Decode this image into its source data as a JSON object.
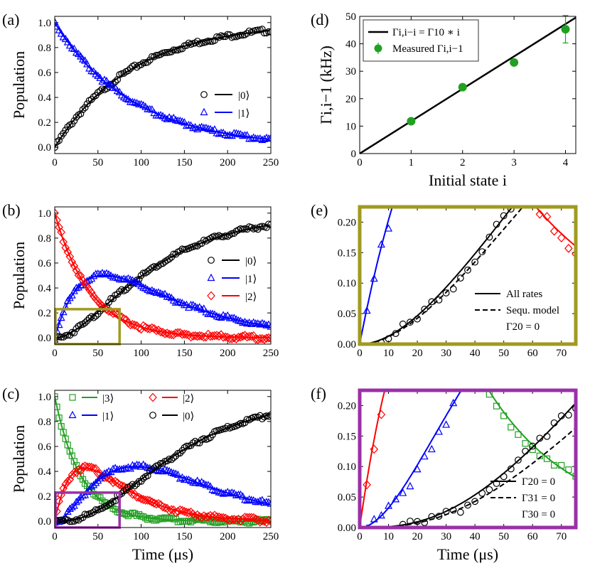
{
  "figure": {
    "x_label": "Time (μs)",
    "population_label": "Population"
  },
  "chart_data": [
    {
      "id": "a",
      "panel_label": "(a)",
      "type": "line",
      "xlabel": "",
      "ylabel": "Population",
      "xlim": [
        0,
        250
      ],
      "ylim": [
        -0.05,
        1.05
      ],
      "xticks": [
        0,
        50,
        100,
        150,
        200,
        250
      ],
      "yticks": [
        0.0,
        0.2,
        0.4,
        0.6,
        0.8,
        1.0
      ],
      "legend_position": "center-right",
      "series": [
        {
          "name": "|0⟩",
          "label": "|0⟩",
          "color": "#000000",
          "marker": "circle",
          "model": "one-minus-exp",
          "rate": 0.0111
        },
        {
          "name": "|1⟩",
          "label": "|1⟩",
          "color": "#0000ff",
          "marker": "triangle",
          "model": "exp",
          "rate": 0.0111
        }
      ]
    },
    {
      "id": "b",
      "panel_label": "(b)",
      "type": "line",
      "xlabel": "",
      "ylabel": "Population",
      "xlim": [
        0,
        250
      ],
      "ylim": [
        -0.05,
        1.05
      ],
      "xticks": [
        0,
        50,
        100,
        150,
        200,
        250
      ],
      "yticks": [
        0.0,
        0.2,
        0.4,
        0.6,
        0.8,
        1.0
      ],
      "legend_position": "right",
      "rates": [
        0.0121,
        0.0244
      ],
      "highlight_box": {
        "x": [
          0,
          75
        ],
        "y": [
          0,
          0.23
        ],
        "color": "#a09a20"
      },
      "series": [
        {
          "name": "|0⟩",
          "label": "|0⟩",
          "color": "#000000",
          "marker": "circle",
          "level": 0
        },
        {
          "name": "|1⟩",
          "label": "|1⟩",
          "color": "#0000ff",
          "marker": "triangle",
          "level": 1
        },
        {
          "name": "|2⟩",
          "label": "|2⟩",
          "color": "#ff0000",
          "marker": "diamond",
          "level": 2
        }
      ]
    },
    {
      "id": "c",
      "panel_label": "(c)",
      "type": "line",
      "xlabel": "Time (μs)",
      "ylabel": "Population",
      "xlim": [
        0,
        250
      ],
      "ylim": [
        -0.05,
        1.05
      ],
      "xticks": [
        0,
        50,
        100,
        150,
        200,
        250
      ],
      "yticks": [
        0.0,
        0.2,
        0.4,
        0.6,
        0.8,
        1.0
      ],
      "legend_position": "top",
      "rates": [
        0.0121,
        0.0244,
        0.0333
      ],
      "highlight_box": {
        "x": [
          0,
          75
        ],
        "y": [
          0,
          0.23
        ],
        "color": "#9b30a8"
      },
      "series": [
        {
          "name": "|3⟩",
          "label": "|3⟩",
          "color": "#22a022",
          "marker": "square",
          "level": 3
        },
        {
          "name": "|2⟩",
          "label": "|2⟩",
          "color": "#ff0000",
          "marker": "diamond",
          "level": 2
        },
        {
          "name": "|1⟩",
          "label": "|1⟩",
          "color": "#0000ff",
          "marker": "triangle",
          "level": 1
        },
        {
          "name": "|0⟩",
          "label": "|0⟩",
          "color": "#000000",
          "marker": "circle",
          "level": 0
        }
      ]
    },
    {
      "id": "d",
      "panel_label": "(d)",
      "type": "scatter",
      "xlabel": "Initial state i",
      "ylabel": "Γi,i−1 (kHz)",
      "xlim": [
        0,
        4.2
      ],
      "ylim": [
        0,
        50
      ],
      "xticks": [
        0,
        1,
        2,
        3,
        4
      ],
      "yticks": [
        0,
        10,
        20,
        30,
        40,
        50
      ],
      "legend_position": "top-left",
      "fit_line": {
        "label": "Γi,i−i = Γ10 ∗ i",
        "slope": 11.8,
        "color": "#000000"
      },
      "points": {
        "label": "Measured Γi,i−1",
        "color": "#22a022",
        "x": [
          1,
          2,
          3,
          4
        ],
        "y": [
          11.8,
          24.2,
          33.2,
          45.3
        ],
        "yerr": [
          0.8,
          0.8,
          1.0,
          5.0
        ]
      }
    },
    {
      "id": "e",
      "panel_label": "(e)",
      "type": "line",
      "xlabel": "",
      "ylabel": "",
      "xlim": [
        0,
        75
      ],
      "ylim": [
        0,
        0.225
      ],
      "xticks": [
        0,
        10,
        20,
        30,
        40,
        50,
        60,
        70
      ],
      "yticks": [
        0.0,
        0.05,
        0.1,
        0.15,
        0.2
      ],
      "frame_color": "#a09a20",
      "rates": [
        0.0121,
        0.0244
      ],
      "seq_scale": 0.91,
      "legend_entries": [
        {
          "text": "All rates",
          "style": "solid"
        },
        {
          "text": "Sequ. model",
          "style": "dashed"
        },
        {
          "text": "Γ20 = 0",
          "style": "none"
        }
      ],
      "series": [
        {
          "name": "|0⟩",
          "color": "#000000",
          "marker": "circle",
          "level": 0
        },
        {
          "name": "|1⟩",
          "color": "#0000ff",
          "marker": "triangle",
          "level": 1
        },
        {
          "name": "|2⟩",
          "color": "#ff0000",
          "marker": "diamond",
          "level": 2
        }
      ]
    },
    {
      "id": "f",
      "panel_label": "(f)",
      "type": "line",
      "xlabel": "Time (μs)",
      "ylabel": "",
      "xlim": [
        0,
        75
      ],
      "ylim": [
        0,
        0.225
      ],
      "xticks": [
        0,
        10,
        20,
        30,
        40,
        50,
        60,
        70
      ],
      "yticks": [
        0.0,
        0.05,
        0.1,
        0.15,
        0.2
      ],
      "frame_color": "#9b30a8",
      "rates": [
        0.0121,
        0.0244,
        0.0333
      ],
      "seq_scale": 0.8,
      "legend_entries": [
        {
          "text": "Γ20 = 0",
          "style": "solid"
        },
        {
          "text": "Γ31 = 0",
          "style": "dashed"
        },
        {
          "text": "Γ30 = 0",
          "style": "none"
        }
      ],
      "series": [
        {
          "name": "|3⟩",
          "color": "#22a022",
          "marker": "square",
          "level": 3
        },
        {
          "name": "|2⟩",
          "color": "#ff0000",
          "marker": "diamond",
          "level": 2
        },
        {
          "name": "|1⟩",
          "color": "#0000ff",
          "marker": "triangle",
          "level": 1
        },
        {
          "name": "|0⟩",
          "color": "#000000",
          "marker": "circle",
          "level": 0
        }
      ]
    }
  ]
}
